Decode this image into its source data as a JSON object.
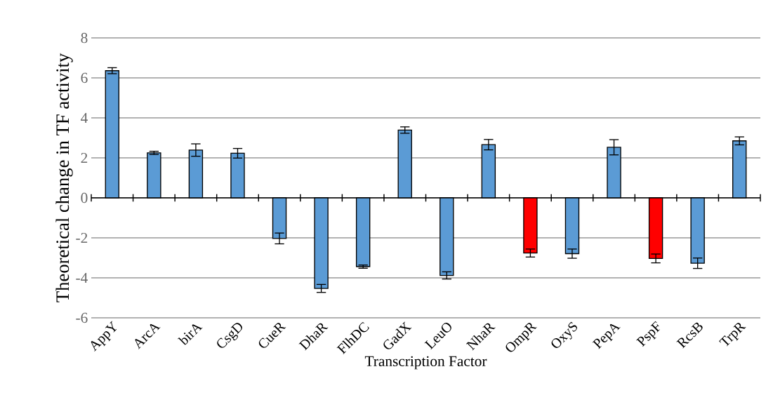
{
  "chart_data": {
    "type": "bar",
    "xlabel": "Transcription Factor",
    "ylabel": "Theoretical change in TF activity",
    "categories": [
      "AppY",
      "ArcA",
      "birA",
      "CsgD",
      "CueR",
      "DhaR",
      "FlhDC",
      "GadX",
      "LeuO",
      "NhaR",
      "OmpR",
      "OxyS",
      "PepA",
      "PspF",
      "RcsB",
      "TrpR"
    ],
    "values": [
      6.36,
      2.25,
      2.39,
      2.23,
      -2.03,
      -4.53,
      -3.44,
      3.39,
      -3.88,
      2.66,
      -2.76,
      -2.79,
      2.53,
      -3.03,
      -3.27,
      2.85
    ],
    "errors": [
      0.15,
      0.08,
      0.31,
      0.24,
      0.27,
      0.2,
      0.08,
      0.16,
      0.18,
      0.26,
      0.2,
      0.23,
      0.38,
      0.22,
      0.26,
      0.2
    ],
    "colors": [
      "#5b9bd5",
      "#5b9bd5",
      "#5b9bd5",
      "#5b9bd5",
      "#5b9bd5",
      "#5b9bd5",
      "#5b9bd5",
      "#5b9bd5",
      "#5b9bd5",
      "#5b9bd5",
      "#ff0000",
      "#5b9bd5",
      "#5b9bd5",
      "#ff0000",
      "#5b9bd5",
      "#5b9bd5"
    ],
    "ylim": [
      -6,
      8
    ],
    "yticks": [
      -6,
      -4,
      -2,
      0,
      2,
      4,
      6,
      8
    ],
    "grid": "y"
  }
}
